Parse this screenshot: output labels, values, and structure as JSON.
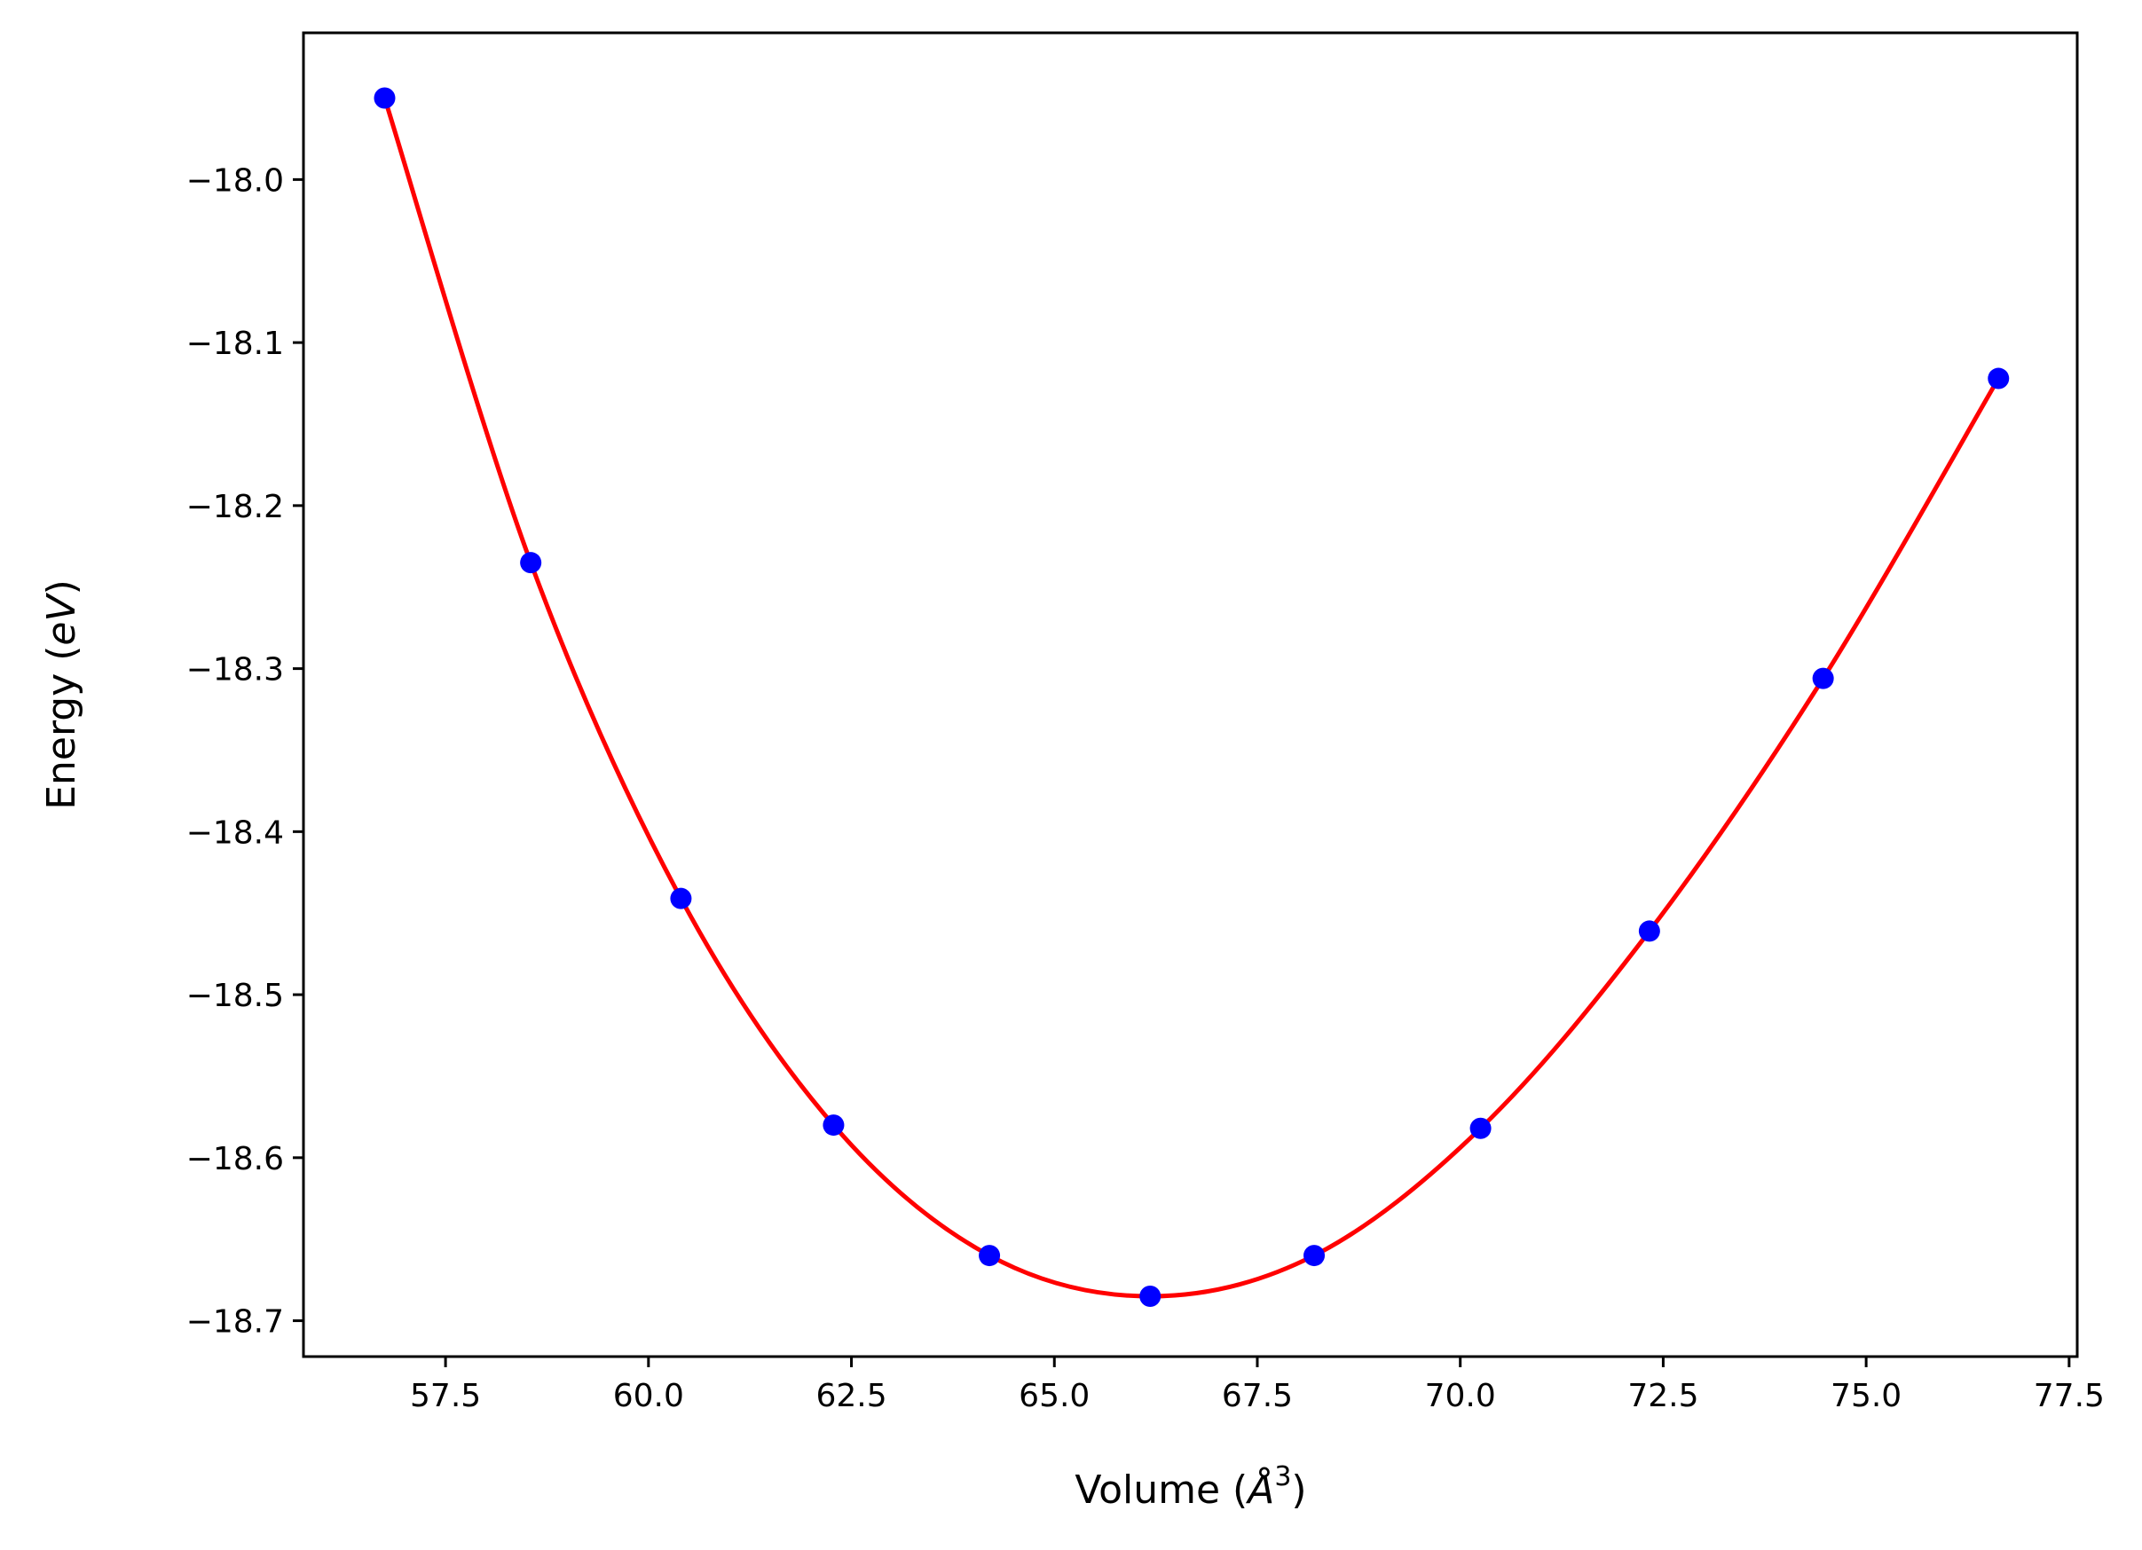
{
  "chart_data": {
    "type": "scatter",
    "title": "",
    "xlabel": "Volume (",
    "xlabel_symbol": "Å",
    "xlabel_sup": "3",
    "xlabel_close": ")",
    "ylabel": "Energy (",
    "ylabel_unit": "eV",
    "ylabel_close": ")",
    "xlim": [
      55.75,
      77.6
    ],
    "ylim": [
      -18.722,
      -17.91
    ],
    "xticks": [
      57.5,
      60.0,
      62.5,
      65.0,
      67.5,
      70.0,
      72.5,
      75.0,
      77.5
    ],
    "xtick_labels": [
      "57.5",
      "60.0",
      "62.5",
      "65.0",
      "67.5",
      "70.0",
      "72.5",
      "75.0",
      "77.5"
    ],
    "yticks": [
      -18.0,
      -18.1,
      -18.2,
      -18.3,
      -18.4,
      -18.5,
      -18.6,
      -18.7
    ],
    "ytick_labels": [
      "−18.0",
      "−18.1",
      "−18.2",
      "−18.3",
      "−18.4",
      "−18.5",
      "−18.6",
      "−18.7"
    ],
    "grid": false,
    "series": [
      {
        "name": "data points",
        "type": "scatter",
        "color": "#0000ff",
        "x": [
          56.75,
          58.55,
          60.4,
          62.28,
          64.2,
          66.18,
          68.2,
          70.25,
          72.33,
          74.47,
          76.63
        ],
        "y": [
          -17.95,
          -18.235,
          -18.441,
          -18.58,
          -18.66,
          -18.685,
          -18.66,
          -18.582,
          -18.461,
          -18.306,
          -18.122
        ]
      },
      {
        "name": "fit",
        "type": "line",
        "color": "#ff0000",
        "x": [
          56.75,
          58.55,
          60.4,
          62.28,
          64.2,
          66.18,
          68.2,
          70.25,
          72.33,
          74.47,
          76.63
        ],
        "y": [
          -17.95,
          -18.235,
          -18.441,
          -18.58,
          -18.66,
          -18.685,
          -18.66,
          -18.582,
          -18.461,
          -18.306,
          -18.122
        ]
      }
    ]
  }
}
